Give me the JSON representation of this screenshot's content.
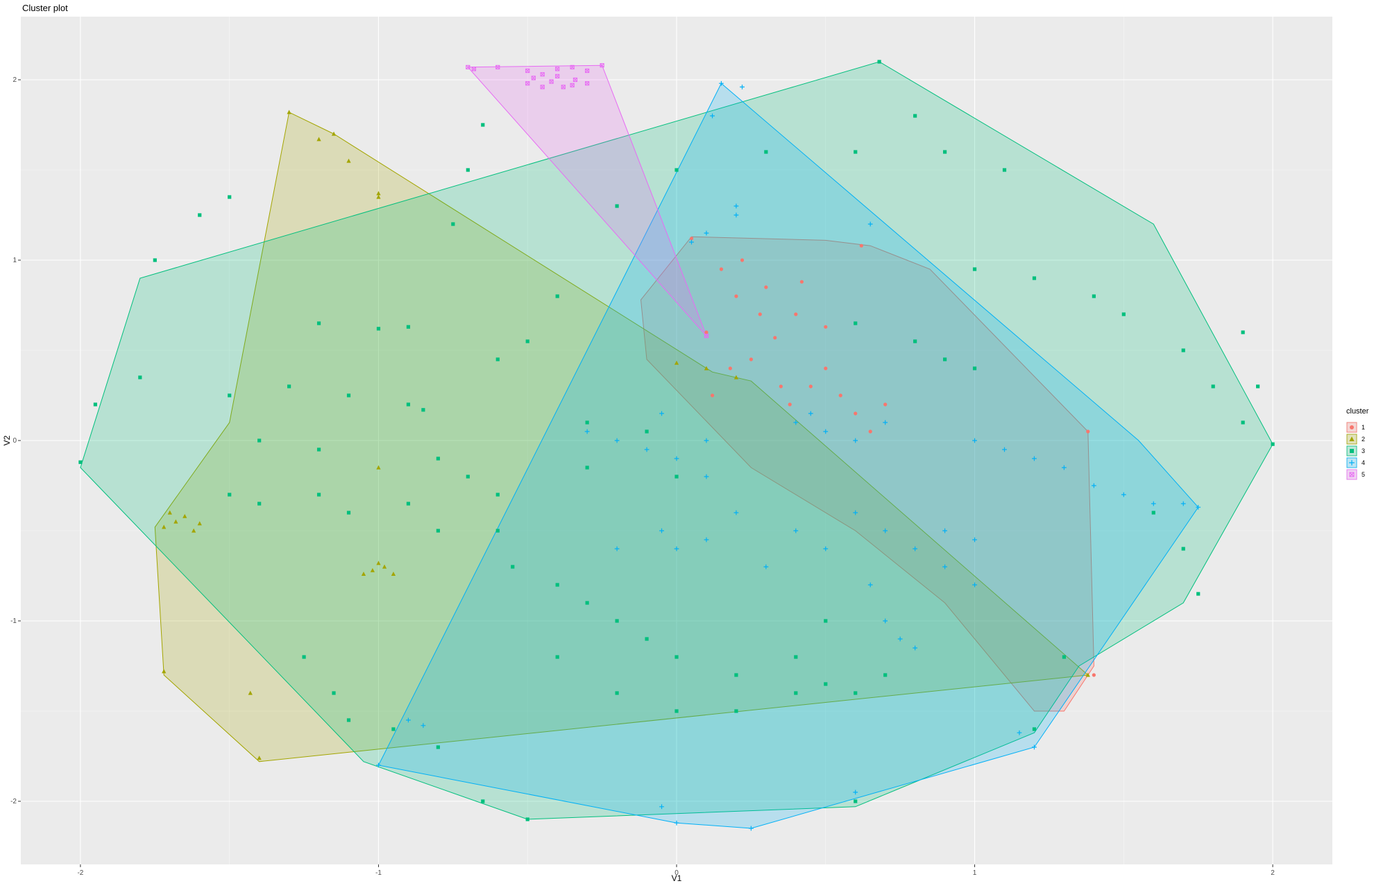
{
  "chart_data": {
    "type": "scatter",
    "title": "Cluster plot",
    "xlabel": "V1",
    "ylabel": "V2",
    "xlim": [
      -2.2,
      2.2
    ],
    "ylim": [
      -2.35,
      2.35
    ],
    "x_ticks": [
      -2,
      -1,
      0,
      1,
      2
    ],
    "y_ticks": [
      -2,
      -1,
      0,
      1,
      2
    ],
    "grid": true,
    "legend": {
      "title": "cluster",
      "position": "right"
    },
    "series": [
      {
        "name": "1",
        "color": "#F8766D",
        "shape": "circle",
        "hull": [
          [
            0.05,
            1.13
          ],
          [
            0.5,
            1.11
          ],
          [
            0.65,
            1.08
          ],
          [
            0.85,
            0.95
          ],
          [
            1.38,
            0.05
          ],
          [
            1.4,
            -1.25
          ],
          [
            1.3,
            -1.5
          ],
          [
            1.2,
            -1.5
          ],
          [
            0.9,
            -0.9
          ],
          [
            0.6,
            -0.5
          ],
          [
            0.25,
            -0.15
          ],
          [
            -0.1,
            0.45
          ],
          [
            -0.12,
            0.78
          ]
        ],
        "points": [
          [
            0.33,
            0.57
          ],
          [
            0.2,
            0.8
          ],
          [
            0.5,
            0.63
          ],
          [
            0.35,
            0.3
          ],
          [
            0.45,
            0.3
          ],
          [
            0.1,
            0.6
          ],
          [
            0.15,
            0.95
          ],
          [
            0.22,
            1.0
          ],
          [
            0.3,
            0.85
          ],
          [
            0.4,
            0.7
          ],
          [
            0.5,
            0.4
          ],
          [
            0.55,
            0.25
          ],
          [
            0.6,
            0.15
          ],
          [
            0.7,
            0.2
          ],
          [
            0.25,
            0.45
          ],
          [
            0.18,
            0.4
          ],
          [
            0.28,
            0.7
          ],
          [
            0.42,
            0.88
          ],
          [
            0.12,
            0.25
          ],
          [
            0.62,
            1.08
          ],
          [
            0.05,
            1.12
          ],
          [
            0.38,
            0.2
          ],
          [
            0.65,
            0.05
          ],
          [
            1.38,
            0.05
          ],
          [
            1.4,
            -1.3
          ]
        ]
      },
      {
        "name": "2",
        "color": "#A3A500",
        "shape": "triangle",
        "hull": [
          [
            -1.3,
            1.82
          ],
          [
            -1.15,
            1.7
          ],
          [
            0.12,
            0.38
          ],
          [
            0.25,
            0.33
          ],
          [
            1.38,
            -1.3
          ],
          [
            -1.4,
            -1.78
          ],
          [
            -1.72,
            -1.3
          ],
          [
            -1.75,
            -0.48
          ],
          [
            -1.5,
            0.1
          ]
        ],
        "points": [
          [
            -1.3,
            1.82
          ],
          [
            -1.15,
            1.7
          ],
          [
            -1.2,
            1.67
          ],
          [
            -1.1,
            1.55
          ],
          [
            -1.0,
            1.37
          ],
          [
            -1.0,
            1.35
          ],
          [
            -1.68,
            -0.45
          ],
          [
            -1.65,
            -0.42
          ],
          [
            -1.72,
            -0.48
          ],
          [
            -1.6,
            -0.46
          ],
          [
            -1.7,
            -0.4
          ],
          [
            -1.62,
            -0.5
          ],
          [
            -1.02,
            -0.72
          ],
          [
            -0.98,
            -0.7
          ],
          [
            -1.05,
            -0.74
          ],
          [
            -0.95,
            -0.74
          ],
          [
            -1.0,
            -0.68
          ],
          [
            -1.0,
            -0.15
          ],
          [
            -1.72,
            -1.28
          ],
          [
            -1.43,
            -1.4
          ],
          [
            -1.4,
            -1.76
          ],
          [
            0.0,
            0.43
          ],
          [
            0.1,
            0.4
          ],
          [
            0.2,
            0.35
          ],
          [
            1.38,
            -1.3
          ]
        ]
      },
      {
        "name": "3",
        "color": "#00BF7D",
        "shape": "square",
        "hull": [
          [
            0.68,
            2.1
          ],
          [
            1.6,
            1.2
          ],
          [
            2.0,
            -0.02
          ],
          [
            1.7,
            -0.9
          ],
          [
            1.35,
            -1.25
          ],
          [
            1.2,
            -1.62
          ],
          [
            0.6,
            -2.03
          ],
          [
            -0.5,
            -2.1
          ],
          [
            -1.05,
            -1.78
          ],
          [
            -2.0,
            -0.15
          ],
          [
            -1.8,
            0.9
          ]
        ],
        "points": [
          [
            -2.0,
            -0.12
          ],
          [
            -1.95,
            0.2
          ],
          [
            -1.8,
            0.35
          ],
          [
            -1.75,
            1.0
          ],
          [
            -1.6,
            1.25
          ],
          [
            -1.5,
            1.35
          ],
          [
            -1.2,
            0.65
          ],
          [
            -1.0,
            0.62
          ],
          [
            -0.9,
            0.63
          ],
          [
            -0.65,
            1.75
          ],
          [
            -0.7,
            1.5
          ],
          [
            -0.75,
            1.2
          ],
          [
            -0.5,
            0.55
          ],
          [
            -0.6,
            0.45
          ],
          [
            -1.5,
            0.25
          ],
          [
            -1.3,
            0.3
          ],
          [
            -1.1,
            0.25
          ],
          [
            -0.9,
            0.2
          ],
          [
            -0.85,
            0.17
          ],
          [
            -1.4,
            0.0
          ],
          [
            -1.2,
            -0.05
          ],
          [
            -0.8,
            -0.1
          ],
          [
            -0.7,
            -0.2
          ],
          [
            -0.6,
            -0.3
          ],
          [
            -1.5,
            -0.3
          ],
          [
            -1.4,
            -0.35
          ],
          [
            -1.2,
            -0.3
          ],
          [
            -1.1,
            -0.4
          ],
          [
            -0.9,
            -0.35
          ],
          [
            -0.8,
            -0.5
          ],
          [
            -0.6,
            -0.5
          ],
          [
            -0.55,
            -0.7
          ],
          [
            -1.25,
            -1.2
          ],
          [
            -1.15,
            -1.4
          ],
          [
            -1.1,
            -1.55
          ],
          [
            -0.95,
            -1.6
          ],
          [
            -0.8,
            -1.7
          ],
          [
            -0.65,
            -2.0
          ],
          [
            -0.5,
            -2.1
          ],
          [
            -0.4,
            0.8
          ],
          [
            -0.2,
            1.3
          ],
          [
            0.0,
            1.5
          ],
          [
            0.3,
            1.6
          ],
          [
            0.6,
            1.6
          ],
          [
            0.9,
            1.6
          ],
          [
            1.1,
            1.5
          ],
          [
            0.8,
            1.8
          ],
          [
            0.68,
            2.1
          ],
          [
            1.0,
            0.95
          ],
          [
            1.2,
            0.9
          ],
          [
            1.4,
            0.8
          ],
          [
            1.5,
            0.7
          ],
          [
            1.7,
            0.5
          ],
          [
            1.8,
            0.3
          ],
          [
            1.9,
            0.1
          ],
          [
            2.0,
            -0.02
          ],
          [
            1.9,
            0.6
          ],
          [
            1.95,
            0.3
          ],
          [
            1.6,
            -0.4
          ],
          [
            1.7,
            -0.6
          ],
          [
            1.75,
            -0.85
          ],
          [
            0.6,
            0.65
          ],
          [
            0.8,
            0.55
          ],
          [
            0.9,
            0.45
          ],
          [
            1.0,
            0.4
          ],
          [
            -0.3,
            -0.15
          ],
          [
            -0.3,
            0.1
          ],
          [
            -0.1,
            0.05
          ],
          [
            0.0,
            -0.2
          ],
          [
            -0.4,
            -0.8
          ],
          [
            -0.3,
            -0.9
          ],
          [
            -0.2,
            -1.0
          ],
          [
            -0.1,
            -1.1
          ],
          [
            0.0,
            -1.2
          ],
          [
            0.2,
            -1.3
          ],
          [
            0.4,
            -1.4
          ],
          [
            0.5,
            -1.35
          ],
          [
            -0.4,
            -1.2
          ],
          [
            -0.2,
            -1.4
          ],
          [
            0.0,
            -1.5
          ],
          [
            0.2,
            -1.5
          ],
          [
            0.4,
            -1.2
          ],
          [
            0.6,
            -1.4
          ],
          [
            0.5,
            -1.0
          ],
          [
            0.7,
            -1.3
          ],
          [
            1.3,
            -1.2
          ],
          [
            1.2,
            -1.6
          ],
          [
            0.6,
            -2.0
          ]
        ]
      },
      {
        "name": "4",
        "color": "#00B0F6",
        "shape": "plus",
        "hull": [
          [
            0.15,
            1.98
          ],
          [
            1.55,
            0.0
          ],
          [
            1.75,
            -0.37
          ],
          [
            1.2,
            -1.7
          ],
          [
            0.25,
            -2.15
          ],
          [
            0.0,
            -2.12
          ],
          [
            -1.0,
            -1.8
          ]
        ],
        "points": [
          [
            0.15,
            1.98
          ],
          [
            0.22,
            1.96
          ],
          [
            0.12,
            1.8
          ],
          [
            0.2,
            1.3
          ],
          [
            0.2,
            1.25
          ],
          [
            0.65,
            1.2
          ],
          [
            0.1,
            1.15
          ],
          [
            0.05,
            1.1
          ],
          [
            -0.3,
            0.05
          ],
          [
            -0.2,
            0.0
          ],
          [
            -0.1,
            -0.05
          ],
          [
            0.0,
            -0.1
          ],
          [
            0.1,
            -0.2
          ],
          [
            -0.05,
            0.15
          ],
          [
            0.1,
            0.0
          ],
          [
            0.5,
            0.05
          ],
          [
            0.6,
            0.0
          ],
          [
            0.7,
            0.1
          ],
          [
            0.4,
            0.1
          ],
          [
            0.45,
            0.15
          ],
          [
            1.0,
            0.0
          ],
          [
            1.1,
            -0.05
          ],
          [
            1.2,
            -0.1
          ],
          [
            1.3,
            -0.15
          ],
          [
            1.4,
            -0.25
          ],
          [
            1.5,
            -0.3
          ],
          [
            1.6,
            -0.35
          ],
          [
            1.7,
            -0.35
          ],
          [
            1.75,
            -0.37
          ],
          [
            0.6,
            -0.4
          ],
          [
            0.7,
            -0.5
          ],
          [
            0.8,
            -0.6
          ],
          [
            0.9,
            -0.7
          ],
          [
            1.0,
            -0.8
          ],
          [
            0.65,
            -0.8
          ],
          [
            0.7,
            -1.0
          ],
          [
            0.75,
            -1.1
          ],
          [
            0.8,
            -1.15
          ],
          [
            0.9,
            -0.5
          ],
          [
            1.0,
            -0.55
          ],
          [
            0.4,
            -0.5
          ],
          [
            0.5,
            -0.6
          ],
          [
            0.3,
            -0.7
          ],
          [
            0.0,
            -0.6
          ],
          [
            0.1,
            -0.55
          ],
          [
            -0.2,
            -0.6
          ],
          [
            -0.05,
            -0.5
          ],
          [
            0.2,
            -0.4
          ],
          [
            1.2,
            -1.7
          ],
          [
            1.15,
            -1.62
          ],
          [
            0.6,
            -1.95
          ],
          [
            0.25,
            -2.15
          ],
          [
            0.0,
            -2.12
          ],
          [
            -0.05,
            -2.03
          ],
          [
            -0.9,
            -1.55
          ],
          [
            -0.85,
            -1.58
          ],
          [
            -1.0,
            -1.8
          ]
        ]
      },
      {
        "name": "5",
        "color": "#E76BF3",
        "shape": "square-cross",
        "hull": [
          [
            -0.7,
            2.07
          ],
          [
            -0.25,
            2.08
          ],
          [
            0.1,
            0.58
          ]
        ],
        "points": [
          [
            -0.7,
            2.07
          ],
          [
            -0.68,
            2.06
          ],
          [
            -0.6,
            2.07
          ],
          [
            -0.5,
            2.05
          ],
          [
            -0.45,
            2.03
          ],
          [
            -0.4,
            2.06
          ],
          [
            -0.35,
            2.07
          ],
          [
            -0.3,
            2.05
          ],
          [
            -0.25,
            2.08
          ],
          [
            -0.5,
            1.98
          ],
          [
            -0.45,
            1.96
          ],
          [
            -0.42,
            1.99
          ],
          [
            -0.38,
            1.96
          ],
          [
            -0.34,
            2.0
          ],
          [
            -0.3,
            1.98
          ],
          [
            -0.48,
            2.01
          ],
          [
            -0.4,
            2.02
          ],
          [
            -0.35,
            1.97
          ],
          [
            0.1,
            0.58
          ]
        ]
      }
    ]
  }
}
